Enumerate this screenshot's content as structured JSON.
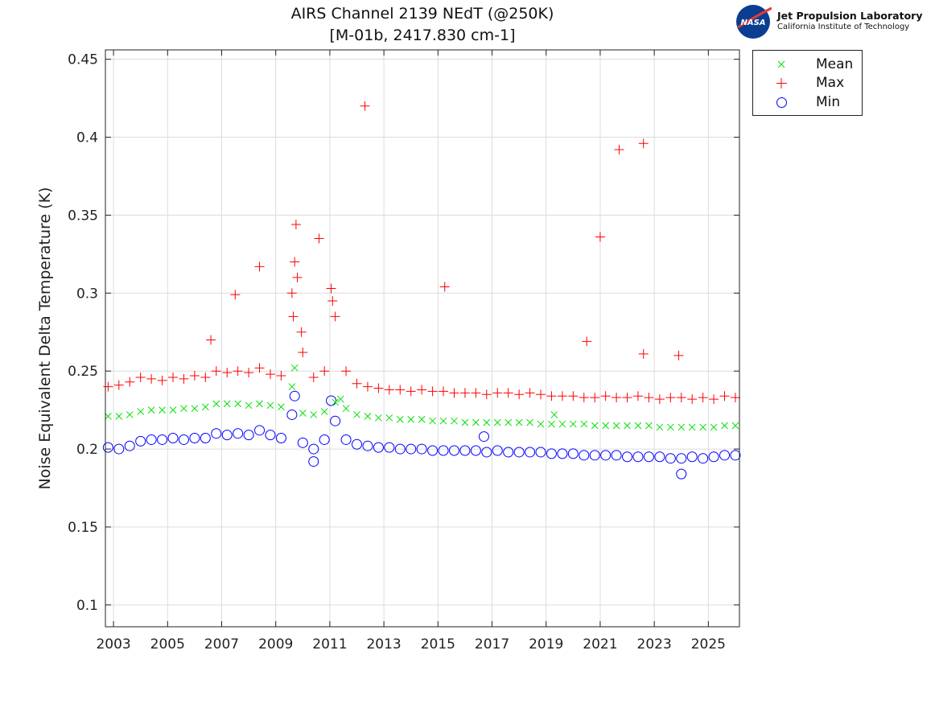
{
  "chart_data": {
    "type": "scatter",
    "title": "AIRS Channel 2139 NEdT (@250K)",
    "subtitle": "[M-01b, 2417.830 cm-1]",
    "xlabel": "",
    "ylabel": "Noise Equivalent Delta Temperature (K)",
    "xlim": [
      2002.7,
      2026.15
    ],
    "ylim": [
      0.086,
      0.456
    ],
    "xticks": [
      2003,
      2005,
      2007,
      2009,
      2011,
      2013,
      2015,
      2017,
      2019,
      2021,
      2023,
      2025
    ],
    "xtick_labels": [
      "2003",
      "2005",
      "2007",
      "2009",
      "2011",
      "2013",
      "2015",
      "2017",
      "2019",
      "2021",
      "2023",
      "2025"
    ],
    "yticks": [
      0.1,
      0.15,
      0.2,
      0.25,
      0.3,
      0.35,
      0.4,
      0.45
    ],
    "ytick_labels": [
      "0.1",
      "0.15",
      "0.2",
      "0.25",
      "0.3",
      "0.35",
      "0.4",
      "0.45"
    ],
    "grid": true,
    "legend_placement": "outside-top-right",
    "x": [
      2002.8,
      2003.2,
      2003.6,
      2004.0,
      2004.4,
      2004.8,
      2005.2,
      2005.6,
      2006.0,
      2006.4,
      2006.8,
      2007.2,
      2007.6,
      2008.0,
      2008.4,
      2008.8,
      2009.2,
      2009.6,
      2010.0,
      2010.4,
      2010.8,
      2011.2,
      2011.6,
      2012.0,
      2012.4,
      2012.8,
      2013.2,
      2013.6,
      2014.0,
      2014.4,
      2014.8,
      2015.2,
      2015.6,
      2016.0,
      2016.4,
      2016.8,
      2017.2,
      2017.6,
      2018.0,
      2018.4,
      2018.8,
      2019.2,
      2019.6,
      2020.0,
      2020.4,
      2020.8,
      2021.2,
      2021.6,
      2022.0,
      2022.4,
      2022.8,
      2023.2,
      2023.6,
      2024.0,
      2024.4,
      2024.8,
      2025.2,
      2025.6,
      2026.0
    ],
    "series": [
      {
        "name": "Mean",
        "marker": "x",
        "color": "#00e000",
        "values": [
          0.221,
          0.221,
          0.222,
          0.224,
          0.225,
          0.225,
          0.225,
          0.226,
          0.226,
          0.227,
          0.229,
          0.229,
          0.229,
          0.228,
          0.229,
          0.228,
          0.227,
          0.24,
          0.223,
          0.222,
          0.224,
          0.23,
          0.226,
          0.222,
          0.221,
          0.22,
          0.22,
          0.219,
          0.219,
          0.219,
          0.218,
          0.218,
          0.218,
          0.217,
          0.217,
          0.217,
          0.217,
          0.217,
          0.217,
          0.217,
          0.216,
          0.216,
          0.216,
          0.216,
          0.216,
          0.215,
          0.215,
          0.215,
          0.215,
          0.215,
          0.215,
          0.214,
          0.214,
          0.214,
          0.214,
          0.214,
          0.214,
          0.215,
          0.215
        ],
        "extra_points": [
          [
            2019.3,
            0.222
          ],
          [
            2009.7,
            0.252
          ],
          [
            2011.4,
            0.232
          ]
        ]
      },
      {
        "name": "Max",
        "marker": "+",
        "color": "#ff0000",
        "values": [
          0.24,
          0.241,
          0.243,
          0.246,
          0.245,
          0.244,
          0.246,
          0.245,
          0.247,
          0.246,
          0.25,
          0.249,
          0.25,
          0.249,
          0.252,
          0.248,
          0.247,
          0.3,
          0.262,
          0.246,
          0.25,
          0.285,
          0.25,
          0.242,
          0.24,
          0.239,
          0.238,
          0.238,
          0.237,
          0.238,
          0.237,
          0.237,
          0.236,
          0.236,
          0.236,
          0.235,
          0.236,
          0.236,
          0.235,
          0.236,
          0.235,
          0.234,
          0.234,
          0.234,
          0.233,
          0.233,
          0.234,
          0.233,
          0.233,
          0.234,
          0.233,
          0.232,
          0.233,
          0.233,
          0.232,
          0.233,
          0.232,
          0.234,
          0.233
        ],
        "extra_points": [
          [
            2012.3,
            0.42
          ],
          [
            2021.7,
            0.392
          ],
          [
            2022.6,
            0.396
          ],
          [
            2021.0,
            0.336
          ],
          [
            2010.6,
            0.335
          ],
          [
            2009.75,
            0.344
          ],
          [
            2008.4,
            0.317
          ],
          [
            2007.5,
            0.299
          ],
          [
            2015.25,
            0.304
          ],
          [
            2020.5,
            0.269
          ],
          [
            2022.6,
            0.261
          ],
          [
            2023.9,
            0.26
          ],
          [
            2006.6,
            0.27
          ],
          [
            2009.7,
            0.32
          ],
          [
            2009.8,
            0.31
          ],
          [
            2009.65,
            0.285
          ],
          [
            2011.05,
            0.303
          ],
          [
            2011.1,
            0.295
          ],
          [
            2009.95,
            0.275
          ]
        ]
      },
      {
        "name": "Min",
        "marker": "o",
        "color": "#0000ff",
        "values": [
          0.201,
          0.2,
          0.202,
          0.205,
          0.206,
          0.206,
          0.207,
          0.206,
          0.207,
          0.207,
          0.21,
          0.209,
          0.21,
          0.209,
          0.212,
          0.209,
          0.207,
          0.222,
          0.204,
          0.2,
          0.206,
          0.218,
          0.206,
          0.203,
          0.202,
          0.201,
          0.201,
          0.2,
          0.2,
          0.2,
          0.199,
          0.199,
          0.199,
          0.199,
          0.199,
          0.198,
          0.199,
          0.198,
          0.198,
          0.198,
          0.198,
          0.197,
          0.197,
          0.197,
          0.196,
          0.196,
          0.196,
          0.196,
          0.195,
          0.195,
          0.195,
          0.195,
          0.194,
          0.194,
          0.195,
          0.194,
          0.195,
          0.196,
          0.196
        ],
        "extra_points": [
          [
            2010.4,
            0.192
          ],
          [
            2024.0,
            0.184
          ],
          [
            2009.7,
            0.234
          ],
          [
            2011.05,
            0.231
          ],
          [
            2016.7,
            0.208
          ]
        ]
      }
    ]
  },
  "logo": {
    "line1": "Jet Propulsion Laboratory",
    "line2": "California Institute of Technology",
    "badge": "NASA"
  }
}
